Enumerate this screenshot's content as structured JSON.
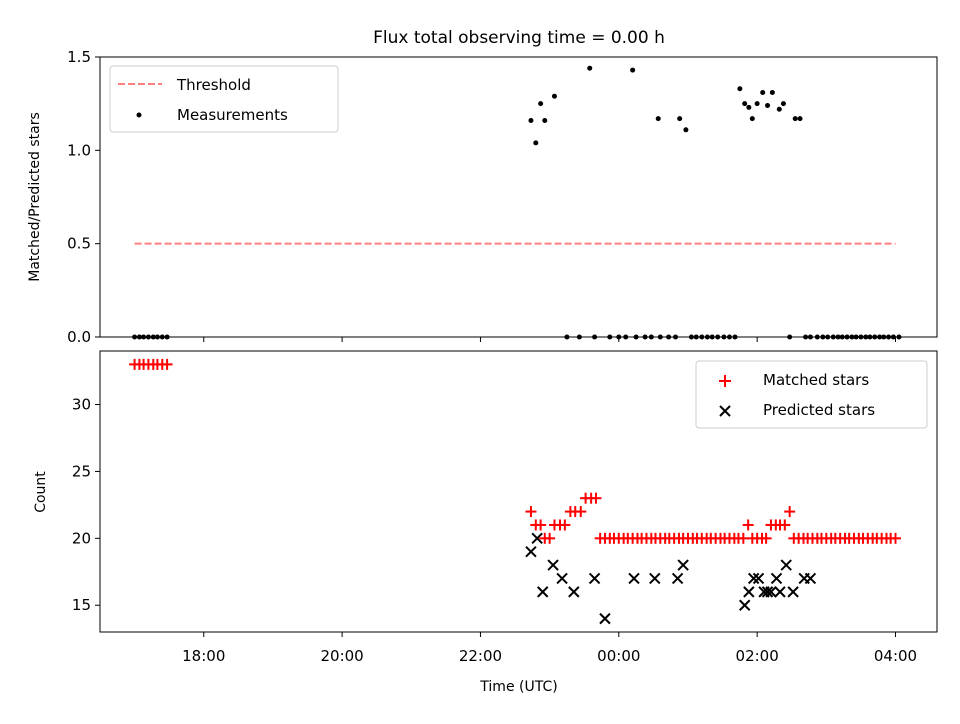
{
  "chart_data": [
    {
      "type": "scatter",
      "title": "Flux total observing time = 0.00 h",
      "xlabel": "",
      "ylabel": "Matched/Predicted stars",
      "xlim_hours": [
        16.5,
        28.6
      ],
      "ylim": [
        0.0,
        1.5
      ],
      "yticks": [
        "0.0",
        "0.5",
        "1.0",
        "1.5"
      ],
      "legend": {
        "placement": "top-left",
        "entries": [
          "Threshold",
          "Measurements"
        ]
      },
      "grid": false,
      "colors": {
        "threshold": "#ff7f7f",
        "measurements": "#000000"
      },
      "threshold": {
        "name": "Threshold",
        "y": 0.5,
        "x_start": 17.0,
        "x_end": 28.0
      },
      "measurements": {
        "name": "Measurements",
        "x": [
          17.0,
          17.07,
          17.13,
          17.2,
          17.27,
          17.33,
          17.4,
          17.47,
          22.73,
          22.8,
          22.87,
          22.93,
          23.07,
          23.25,
          23.43,
          23.58,
          23.65,
          23.87,
          24.0,
          24.1,
          24.2,
          24.25,
          24.38,
          24.47,
          24.57,
          24.6,
          24.72,
          24.82,
          24.88,
          24.97,
          25.05,
          25.12,
          25.2,
          25.28,
          25.35,
          25.43,
          25.52,
          25.6,
          25.68,
          25.75,
          25.82,
          25.88,
          25.93,
          26.0,
          26.08,
          26.15,
          26.22,
          26.32,
          26.38,
          26.47,
          26.55,
          26.62,
          26.7,
          26.77,
          26.87,
          26.95,
          27.02,
          27.1,
          27.17,
          27.23,
          27.3,
          27.37,
          27.43,
          27.5,
          27.57,
          27.63,
          27.7,
          27.77,
          27.83,
          27.9,
          27.97,
          28.05
        ],
        "y": [
          0,
          0,
          0,
          0,
          0,
          0,
          0,
          0,
          1.16,
          1.04,
          1.25,
          1.16,
          1.29,
          0,
          0,
          1.44,
          0,
          0,
          0,
          0,
          1.43,
          0,
          0,
          0,
          1.17,
          0,
          0,
          0,
          1.17,
          1.11,
          0,
          0,
          0,
          0,
          0,
          0,
          0,
          0,
          0,
          1.33,
          1.25,
          1.23,
          1.17,
          1.25,
          1.31,
          1.24,
          1.31,
          1.22,
          1.25,
          0,
          1.17,
          1.17,
          0,
          0,
          0,
          0,
          0,
          0,
          0,
          0,
          0,
          0,
          0,
          0,
          0,
          0,
          0,
          0,
          0,
          0,
          0,
          0
        ]
      }
    },
    {
      "type": "scatter",
      "title": "",
      "xlabel": "Time (UTC)",
      "ylabel": "Count",
      "xlim_hours": [
        16.5,
        28.6
      ],
      "ylim": [
        13,
        34
      ],
      "yticks": [
        "15",
        "20",
        "25",
        "30"
      ],
      "xticks": [
        "18:00",
        "20:00",
        "22:00",
        "00:00",
        "02:00",
        "04:00"
      ],
      "xtick_hours": [
        18,
        20,
        22,
        24,
        26,
        28
      ],
      "legend": {
        "placement": "top-right",
        "entries": [
          "Matched stars",
          "Predicted stars"
        ]
      },
      "grid": false,
      "colors": {
        "matched": "#ff0000",
        "predicted": "#000000"
      },
      "matched": {
        "name": "Matched stars",
        "x": [
          17.0,
          17.07,
          17.13,
          17.2,
          17.27,
          17.33,
          17.4,
          17.47,
          22.73,
          22.8,
          22.87,
          22.93,
          23.0,
          23.07,
          23.15,
          23.22,
          23.3,
          23.37,
          23.45,
          23.52,
          23.6,
          23.67,
          23.73,
          23.8,
          23.87,
          23.93,
          24.0,
          24.07,
          24.13,
          24.2,
          24.27,
          24.33,
          24.4,
          24.47,
          24.53,
          24.6,
          24.67,
          24.73,
          24.8,
          24.87,
          24.93,
          25.0,
          25.07,
          25.13,
          25.2,
          25.27,
          25.33,
          25.4,
          25.47,
          25.53,
          25.6,
          25.67,
          25.73,
          25.8,
          25.87,
          25.93,
          26.0,
          26.07,
          26.13,
          26.2,
          26.27,
          26.33,
          26.4,
          26.47,
          26.53,
          26.6,
          26.67,
          26.73,
          26.8,
          26.87,
          26.93,
          27.0,
          27.07,
          27.13,
          27.2,
          27.27,
          27.33,
          27.4,
          27.47,
          27.53,
          27.6,
          27.67,
          27.73,
          27.8,
          27.87,
          27.93,
          28.0
        ],
        "y": [
          33,
          33,
          33,
          33,
          33,
          33,
          33,
          33,
          22,
          21,
          21,
          20,
          20,
          21,
          21,
          21,
          22,
          22,
          22,
          23,
          23,
          23,
          20,
          20,
          20,
          20,
          20,
          20,
          20,
          20,
          20,
          20,
          20,
          20,
          20,
          20,
          20,
          20,
          20,
          20,
          20,
          20,
          20,
          20,
          20,
          20,
          20,
          20,
          20,
          20,
          20,
          20,
          20,
          20,
          21,
          20,
          20,
          20,
          20,
          21,
          21,
          21,
          21,
          22,
          20,
          20,
          20,
          20,
          20,
          20,
          20,
          20,
          20,
          20,
          20,
          20,
          20,
          20,
          20,
          20,
          20,
          20,
          20,
          20,
          20,
          20,
          20
        ]
      },
      "predicted": {
        "name": "Predicted stars",
        "x": [
          22.73,
          22.82,
          22.9,
          23.05,
          23.18,
          23.35,
          23.65,
          23.8,
          24.22,
          24.52,
          24.85,
          24.93,
          25.82,
          25.88,
          25.95,
          26.02,
          26.1,
          26.15,
          26.2,
          26.28,
          26.33,
          26.42,
          26.52,
          26.68,
          26.77
        ],
        "y": [
          19,
          20,
          16,
          18,
          17,
          16,
          17,
          14,
          17,
          17,
          17,
          18,
          15,
          16,
          17,
          17,
          16,
          16,
          16,
          17,
          16,
          18,
          16,
          17,
          17
        ]
      }
    }
  ]
}
